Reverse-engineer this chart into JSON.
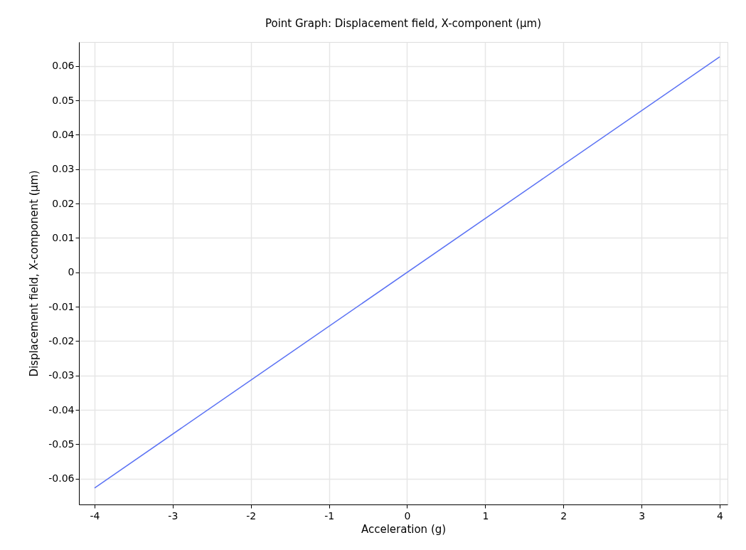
{
  "chart_data": {
    "type": "line",
    "title": "Point Graph: Displacement field, X-component (µm)",
    "xlabel": "Acceleration (g)",
    "ylabel": "Displacement field, X-component (µm)",
    "x": [
      -4,
      4
    ],
    "series": [
      {
        "color": "#5b72f4",
        "values": [
          -0.0627,
          0.0627
        ]
      }
    ],
    "xlim": [
      -4.2,
      4.1
    ],
    "xticks": [
      -4,
      -3,
      -2,
      -1,
      0,
      1,
      2,
      3,
      4
    ],
    "ylim": [
      -0.0675,
      0.067
    ],
    "yticks": [
      -0.06,
      -0.05,
      -0.04,
      -0.03,
      -0.02,
      -0.01,
      {
        "value": 0,
        "label": "0"
      },
      0.01,
      0.02,
      0.03,
      0.04,
      0.05,
      0.06
    ],
    "grid": true,
    "marker": "none",
    "line_style": "solid"
  }
}
